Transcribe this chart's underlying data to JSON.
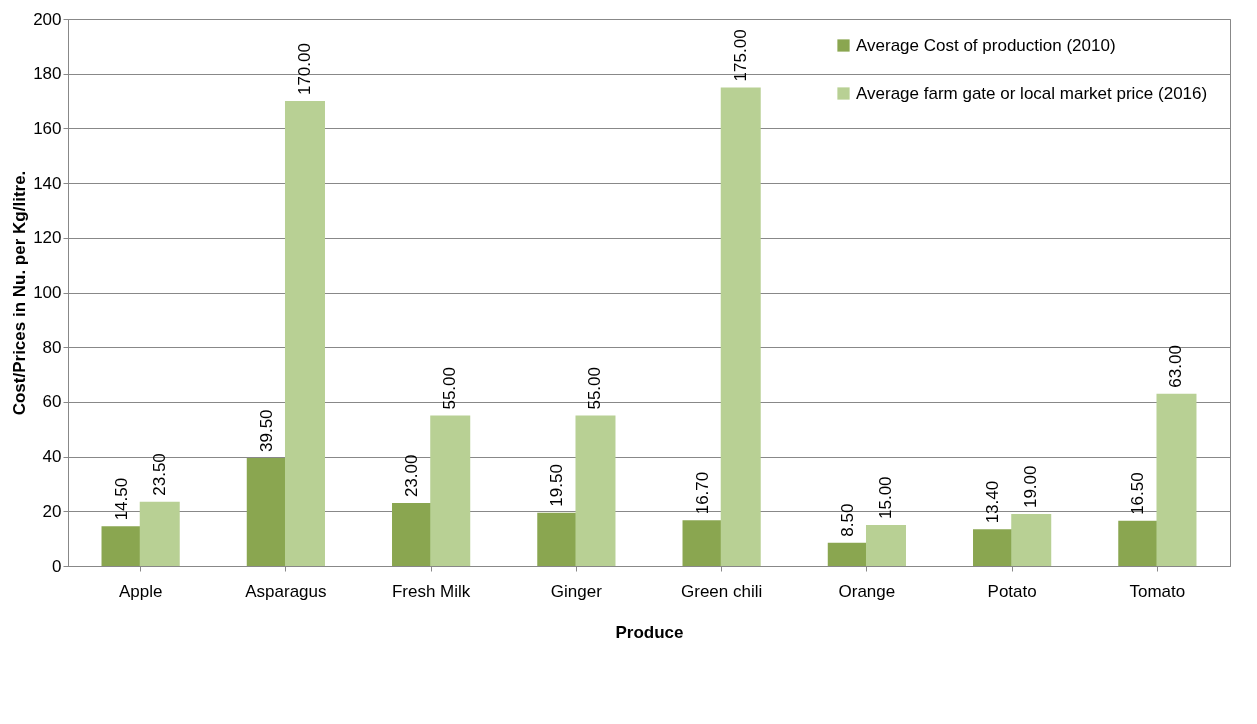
{
  "chart_data": {
    "type": "bar",
    "xlabel": "Produce",
    "ylabel": "Cost/Prices in Nu. per Kg/litre.",
    "categories": [
      "Apple",
      "Asparagus",
      "Fresh Milk",
      "Ginger",
      "Green chili",
      "Orange",
      "Potato",
      "Tomato"
    ],
    "series": [
      {
        "name": "Average Cost of production  (2010)",
        "color": "#8aa650",
        "values": [
          14.5,
          39.5,
          23.0,
          19.5,
          16.7,
          8.5,
          13.4,
          16.5
        ],
        "value_labels": [
          "14.50",
          "39.50",
          "23.00",
          "19.50",
          "16.70",
          "8.50",
          "13.40",
          "16.50"
        ]
      },
      {
        "name": "Average farm gate or local market price  (2016)",
        "color": "#b8d094",
        "values": [
          23.5,
          170.0,
          55.0,
          55.0,
          175.0,
          15.0,
          19.0,
          63.0
        ],
        "value_labels": [
          "23.50",
          "170.00",
          "55.00",
          "55.00",
          "175.00",
          "15.00",
          "19.00",
          "63.00"
        ]
      }
    ],
    "ylim": [
      0,
      200
    ],
    "yticks": [
      0,
      20,
      40,
      60,
      80,
      100,
      120,
      140,
      160,
      180,
      200
    ],
    "grid": "y",
    "legend": "top right"
  }
}
